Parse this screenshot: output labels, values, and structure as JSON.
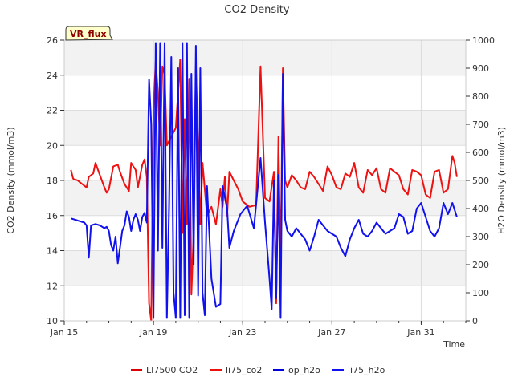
{
  "chart_data": {
    "type": "line",
    "title": "CO2 Density",
    "xlabel": "Time",
    "ylabel_left": "CO2 Density (mmol/m3)",
    "ylabel_right": "H2O Density (mmol/m3)",
    "annotation": "VR_flux",
    "x_unit": "day of January (date axis)",
    "x_range": [
      15,
      33
    ],
    "ylim_left": [
      10,
      26
    ],
    "ylim_right": [
      0,
      1000
    ],
    "x_ticks": [
      {
        "value": 15,
        "label": "Jan 15"
      },
      {
        "value": 19,
        "label": "Jan 19"
      },
      {
        "value": 23,
        "label": "Jan 23"
      },
      {
        "value": 27,
        "label": "Jan 27"
      },
      {
        "value": 31,
        "label": "Jan 31"
      }
    ],
    "y_ticks_left": [
      10,
      12,
      14,
      16,
      18,
      20,
      22,
      24,
      26
    ],
    "y_ticks_right": [
      0,
      100,
      200,
      300,
      400,
      500,
      600,
      700,
      800,
      900,
      1000
    ],
    "grid": true,
    "legend_position": "bottom",
    "series": [
      {
        "name": "LI7500 CO2",
        "axis": "left",
        "color": "#dd0000",
        "points": []
      },
      {
        "name": "li75_co2",
        "axis": "left",
        "color": "#ee1111",
        "points": [
          [
            15.3,
            18.6
          ],
          [
            15.4,
            18.1
          ],
          [
            15.6,
            18.0
          ],
          [
            15.8,
            17.8
          ],
          [
            16.0,
            17.6
          ],
          [
            16.1,
            18.2
          ],
          [
            16.3,
            18.4
          ],
          [
            16.4,
            19.0
          ],
          [
            16.6,
            18.3
          ],
          [
            16.8,
            17.6
          ],
          [
            16.9,
            17.3
          ],
          [
            17.0,
            17.5
          ],
          [
            17.2,
            18.8
          ],
          [
            17.4,
            18.9
          ],
          [
            17.5,
            18.5
          ],
          [
            17.7,
            17.8
          ],
          [
            17.9,
            17.4
          ],
          [
            18.0,
            19.0
          ],
          [
            18.2,
            18.6
          ],
          [
            18.3,
            17.6
          ],
          [
            18.5,
            18.9
          ],
          [
            18.6,
            19.2
          ],
          [
            18.7,
            18.2
          ],
          [
            18.8,
            11.0
          ],
          [
            18.9,
            10.0
          ],
          [
            19.0,
            22.0
          ],
          [
            19.1,
            24.8
          ],
          [
            19.2,
            23.0
          ],
          [
            19.3,
            20.0
          ],
          [
            19.4,
            24.5
          ],
          [
            19.5,
            24.0
          ],
          [
            19.6,
            20.0
          ],
          [
            19.8,
            20.5
          ],
          [
            20.0,
            21.0
          ],
          [
            20.2,
            24.9
          ],
          [
            20.3,
            15.0
          ],
          [
            20.4,
            21.5
          ],
          [
            20.5,
            15.5
          ],
          [
            20.6,
            23.8
          ],
          [
            20.7,
            11.5
          ],
          [
            20.8,
            15.0
          ],
          [
            20.9,
            24.5
          ],
          [
            21.1,
            15.5
          ],
          [
            21.2,
            19.0
          ],
          [
            21.4,
            16.0
          ],
          [
            21.6,
            16.5
          ],
          [
            21.8,
            15.5
          ],
          [
            22.0,
            17.5
          ],
          [
            22.1,
            16.5
          ],
          [
            22.2,
            18.2
          ],
          [
            22.3,
            16.0
          ],
          [
            22.4,
            18.5
          ],
          [
            22.6,
            18.0
          ],
          [
            22.8,
            17.5
          ],
          [
            23.0,
            16.8
          ],
          [
            23.3,
            16.5
          ],
          [
            23.6,
            16.6
          ],
          [
            23.8,
            24.5
          ],
          [
            24.0,
            17.0
          ],
          [
            24.2,
            16.8
          ],
          [
            24.4,
            18.5
          ],
          [
            24.5,
            11.0
          ],
          [
            24.6,
            20.5
          ],
          [
            24.7,
            13.0
          ],
          [
            24.8,
            24.4
          ],
          [
            24.9,
            18.0
          ],
          [
            25.0,
            17.6
          ],
          [
            25.2,
            18.3
          ],
          [
            25.4,
            18.0
          ],
          [
            25.6,
            17.6
          ],
          [
            25.8,
            17.5
          ],
          [
            26.0,
            18.5
          ],
          [
            26.2,
            18.2
          ],
          [
            26.4,
            17.8
          ],
          [
            26.6,
            17.4
          ],
          [
            26.8,
            18.8
          ],
          [
            27.0,
            18.3
          ],
          [
            27.2,
            17.6
          ],
          [
            27.4,
            17.5
          ],
          [
            27.6,
            18.4
          ],
          [
            27.8,
            18.2
          ],
          [
            28.0,
            19.0
          ],
          [
            28.2,
            17.6
          ],
          [
            28.4,
            17.3
          ],
          [
            28.6,
            18.6
          ],
          [
            28.8,
            18.3
          ],
          [
            29.0,
            18.7
          ],
          [
            29.2,
            17.5
          ],
          [
            29.4,
            17.3
          ],
          [
            29.6,
            18.7
          ],
          [
            29.8,
            18.5
          ],
          [
            30.0,
            18.3
          ],
          [
            30.2,
            17.5
          ],
          [
            30.4,
            17.2
          ],
          [
            30.6,
            18.6
          ],
          [
            30.8,
            18.5
          ],
          [
            31.0,
            18.3
          ],
          [
            31.2,
            17.2
          ],
          [
            31.4,
            17.0
          ],
          [
            31.6,
            18.5
          ],
          [
            31.8,
            18.6
          ],
          [
            32.0,
            17.3
          ],
          [
            32.2,
            17.5
          ],
          [
            32.4,
            19.4
          ],
          [
            32.5,
            19.0
          ],
          [
            32.6,
            18.2
          ]
        ]
      },
      {
        "name": "op_h2o",
        "axis": "right",
        "color": "#0000dd",
        "points": []
      },
      {
        "name": "li75_h2o",
        "axis": "right",
        "color": "#1111ee",
        "points": [
          [
            15.3,
            365
          ],
          [
            15.5,
            360
          ],
          [
            15.7,
            355
          ],
          [
            15.9,
            350
          ],
          [
            16.0,
            340
          ],
          [
            16.1,
            225
          ],
          [
            16.2,
            340
          ],
          [
            16.4,
            345
          ],
          [
            16.6,
            340
          ],
          [
            16.8,
            330
          ],
          [
            16.9,
            335
          ],
          [
            17.0,
            320
          ],
          [
            17.1,
            270
          ],
          [
            17.2,
            250
          ],
          [
            17.3,
            300
          ],
          [
            17.4,
            205
          ],
          [
            17.5,
            260
          ],
          [
            17.6,
            320
          ],
          [
            17.7,
            340
          ],
          [
            17.8,
            390
          ],
          [
            17.9,
            370
          ],
          [
            18.0,
            320
          ],
          [
            18.1,
            360
          ],
          [
            18.2,
            380
          ],
          [
            18.3,
            360
          ],
          [
            18.4,
            320
          ],
          [
            18.5,
            370
          ],
          [
            18.6,
            385
          ],
          [
            18.7,
            350
          ],
          [
            18.8,
            860
          ],
          [
            18.9,
            700
          ],
          [
            19.0,
            10
          ],
          [
            19.1,
            990
          ],
          [
            19.2,
            250
          ],
          [
            19.3,
            990
          ],
          [
            19.4,
            260
          ],
          [
            19.5,
            990
          ],
          [
            19.6,
            10
          ],
          [
            19.7,
            420
          ],
          [
            19.8,
            940
          ],
          [
            19.9,
            100
          ],
          [
            20.0,
            10
          ],
          [
            20.1,
            900
          ],
          [
            20.2,
            10
          ],
          [
            20.3,
            990
          ],
          [
            20.4,
            20
          ],
          [
            20.5,
            990
          ],
          [
            20.6,
            10
          ],
          [
            20.7,
            880
          ],
          [
            20.8,
            200
          ],
          [
            20.9,
            980
          ],
          [
            21.0,
            90
          ],
          [
            21.1,
            900
          ],
          [
            21.2,
            100
          ],
          [
            21.3,
            20
          ],
          [
            21.4,
            480
          ],
          [
            21.6,
            150
          ],
          [
            21.8,
            50
          ],
          [
            22.0,
            60
          ],
          [
            22.1,
            480
          ],
          [
            22.3,
            400
          ],
          [
            22.4,
            260
          ],
          [
            22.6,
            320
          ],
          [
            22.9,
            380
          ],
          [
            23.2,
            410
          ],
          [
            23.5,
            330
          ],
          [
            23.8,
            580
          ],
          [
            24.0,
            350
          ],
          [
            24.2,
            150
          ],
          [
            24.3,
            40
          ],
          [
            24.4,
            500
          ],
          [
            24.5,
            80
          ],
          [
            24.6,
            520
          ],
          [
            24.7,
            10
          ],
          [
            24.8,
            880
          ],
          [
            24.9,
            360
          ],
          [
            25.0,
            320
          ],
          [
            25.2,
            300
          ],
          [
            25.4,
            330
          ],
          [
            25.6,
            310
          ],
          [
            25.8,
            290
          ],
          [
            26.0,
            250
          ],
          [
            26.2,
            300
          ],
          [
            26.4,
            360
          ],
          [
            26.6,
            340
          ],
          [
            26.8,
            320
          ],
          [
            27.0,
            310
          ],
          [
            27.2,
            300
          ],
          [
            27.4,
            260
          ],
          [
            27.6,
            230
          ],
          [
            27.8,
            290
          ],
          [
            28.0,
            330
          ],
          [
            28.2,
            360
          ],
          [
            28.4,
            310
          ],
          [
            28.6,
            300
          ],
          [
            28.8,
            320
          ],
          [
            29.0,
            350
          ],
          [
            29.2,
            330
          ],
          [
            29.4,
            310
          ],
          [
            29.6,
            320
          ],
          [
            29.8,
            330
          ],
          [
            30.0,
            380
          ],
          [
            30.2,
            370
          ],
          [
            30.4,
            310
          ],
          [
            30.6,
            320
          ],
          [
            30.8,
            400
          ],
          [
            31.0,
            420
          ],
          [
            31.2,
            370
          ],
          [
            31.4,
            320
          ],
          [
            31.6,
            300
          ],
          [
            31.8,
            330
          ],
          [
            32.0,
            420
          ],
          [
            32.2,
            380
          ],
          [
            32.4,
            420
          ],
          [
            32.6,
            370
          ]
        ]
      }
    ]
  }
}
